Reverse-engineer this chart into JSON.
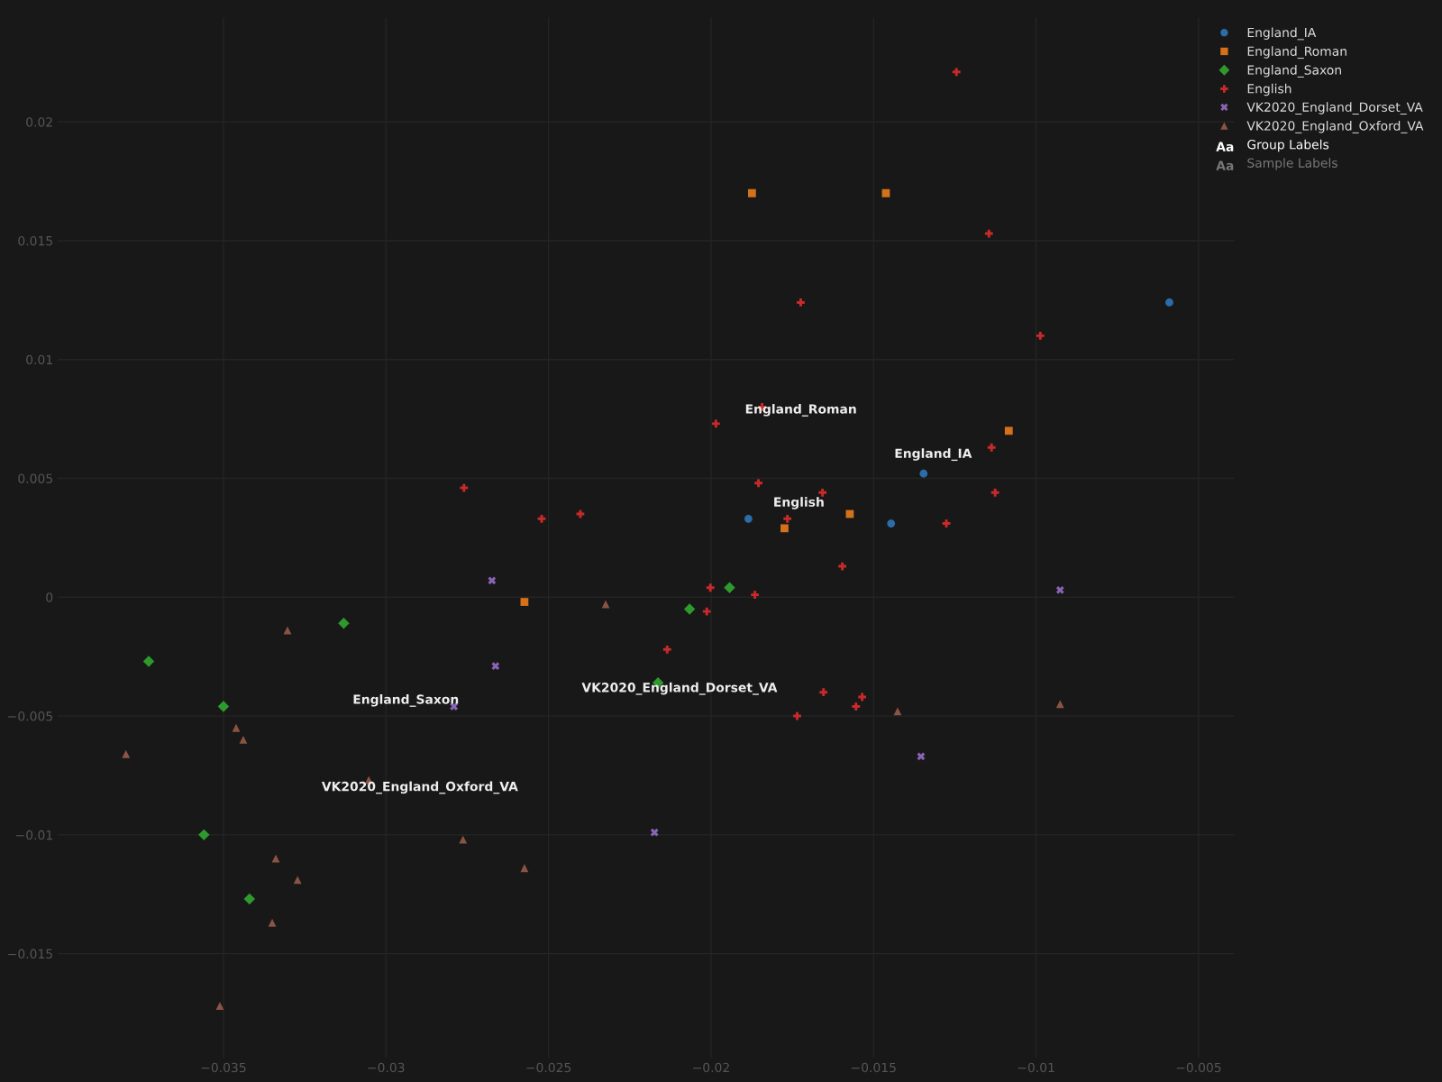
{
  "chart_data": {
    "type": "scatter",
    "xlim": [
      -0.0401,
      -0.0039
    ],
    "ylim": [
      -0.0194,
      0.0244
    ],
    "xticks": [
      {
        "value": -0.035,
        "label": "−0.035"
      },
      {
        "value": -0.03,
        "label": "−0.03"
      },
      {
        "value": -0.025,
        "label": "−0.025"
      },
      {
        "value": -0.02,
        "label": "−0.02"
      },
      {
        "value": -0.015,
        "label": "−0.015"
      },
      {
        "value": -0.01,
        "label": "−0.01"
      },
      {
        "value": -0.005,
        "label": "−0.005"
      }
    ],
    "yticks": [
      {
        "value": -0.015,
        "label": "−0.015"
      },
      {
        "value": -0.01,
        "label": "−0.01"
      },
      {
        "value": -0.005,
        "label": "−0.005"
      },
      0,
      0.005,
      0.01,
      0.015,
      0.02
    ],
    "grid": true,
    "legend": "top right",
    "series": [
      {
        "name": "England_IA",
        "color": "#2a6da8",
        "marker": "circle",
        "x": [
          -0.0059,
          -0.01346,
          -0.01446,
          -0.01885
        ],
        "values": [
          0.0124,
          0.0052,
          0.0031,
          0.0033
        ]
      },
      {
        "name": "England_Roman",
        "color": "#d4711a",
        "marker": "square",
        "x": [
          -0.01874,
          -0.01462,
          -0.01084,
          -0.01573,
          -0.01774,
          -0.02574
        ],
        "values": [
          0.017,
          0.017,
          0.007,
          0.0035,
          0.0029,
          -0.0002
        ]
      },
      {
        "name": "England_Saxon",
        "color": "#2e9a2e",
        "marker": "diamond",
        "x": [
          -0.01943,
          -0.02066,
          -0.02163,
          -0.0313,
          -0.0373,
          -0.035,
          -0.0356,
          -0.0342
        ],
        "values": [
          0.0004,
          -0.0005,
          -0.0036,
          -0.0011,
          -0.0027,
          -0.0046,
          -0.01,
          -0.0127
        ]
      },
      {
        "name": "English",
        "color": "#c82a2a",
        "marker": "cross",
        "x": [
          -0.01245,
          -0.01145,
          -0.01724,
          -0.00987,
          -0.01843,
          -0.01985,
          -0.01137,
          -0.01126,
          -0.01854,
          -0.01657,
          -0.01765,
          -0.01276,
          -0.01596,
          -0.0276,
          -0.02521,
          -0.02402,
          -0.02002,
          -0.02013,
          -0.01865,
          -0.02135,
          -0.01654,
          -0.01535,
          -0.01735,
          -0.01554
        ],
        "values": [
          0.0221,
          0.0153,
          0.0124,
          0.011,
          0.008,
          0.0073,
          0.0063,
          0.0044,
          0.0048,
          0.0044,
          0.0033,
          0.0031,
          0.0013,
          0.0046,
          0.0033,
          0.0035,
          0.0004,
          -0.0006,
          0.0001,
          -0.0022,
          -0.004,
          -0.0042,
          -0.005,
          -0.0046
        ]
      },
      {
        "name": "VK2020_England_Dorset_VA",
        "color": "#8a64b4",
        "marker": "x",
        "x": [
          -0.02674,
          -0.02663,
          -0.02791,
          -0.00926,
          -0.01354,
          -0.02174
        ],
        "values": [
          0.0007,
          -0.0029,
          -0.0046,
          0.0003,
          -0.0067,
          -0.0099
        ]
      },
      {
        "name": "VK2020_England_Oxford_VA",
        "color": "#8a5444",
        "marker": "triangle",
        "x": [
          -0.02324,
          -0.03303,
          -0.038,
          -0.03461,
          -0.03439,
          -0.03053,
          -0.01426,
          -0.00926,
          -0.02763,
          -0.02574,
          -0.03339,
          -0.03272,
          -0.0335,
          -0.03511
        ],
        "values": [
          -0.0003,
          -0.0014,
          -0.0066,
          -0.0055,
          -0.006,
          -0.0077,
          -0.0048,
          -0.0045,
          -0.0102,
          -0.0114,
          -0.011,
          -0.0119,
          -0.0137,
          -0.0172
        ]
      },
      {
        "name": "Group Labels",
        "type": "scatter",
        "color": "#ffffff"
      },
      {
        "name": "Sample Labels",
        "type": "scatter",
        "color": "#777777"
      }
    ],
    "annotations": [
      "Aa",
      "Aa"
    ]
  }
}
